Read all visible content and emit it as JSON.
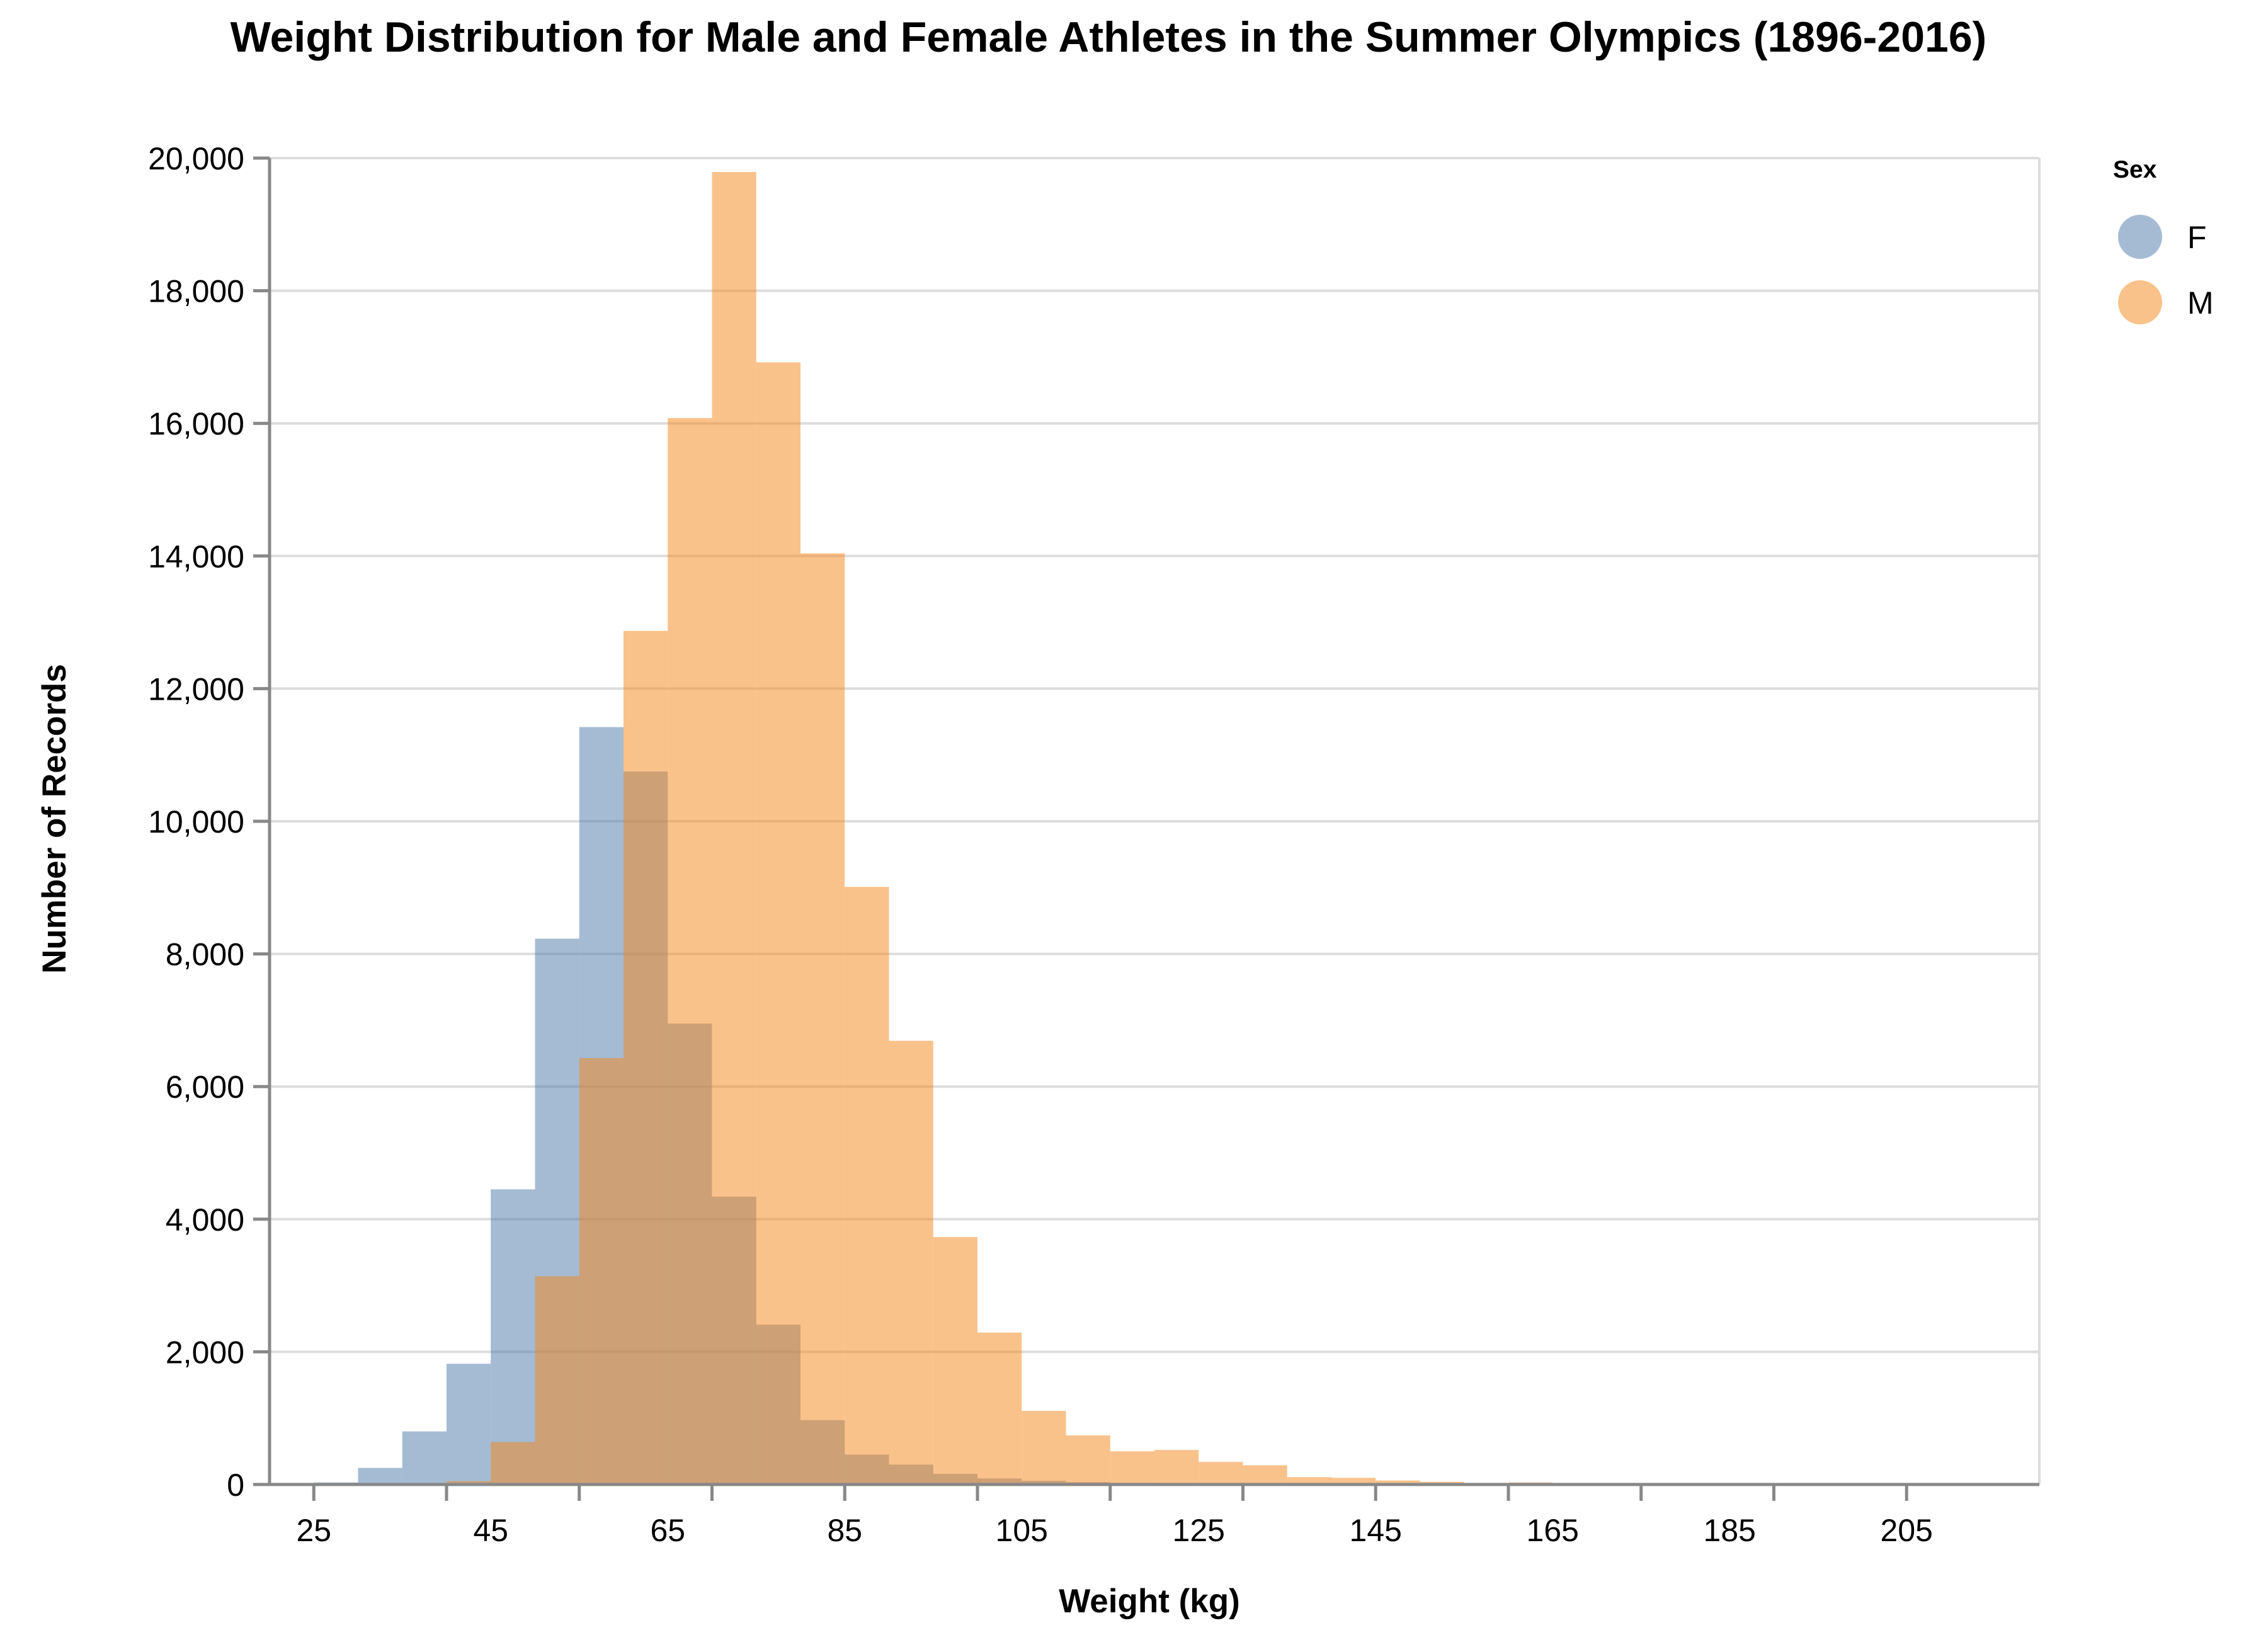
{
  "chart_data": {
    "type": "bar",
    "title": "Weight Distribution for Male and Female Athletes in the Summer Olympics (1896-2016)",
    "xlabel": "Weight (kg)",
    "ylabel": "Number of Records",
    "xlim": [
      20,
      220
    ],
    "ylim": [
      0,
      20000
    ],
    "x_ticks": [
      25,
      45,
      65,
      85,
      105,
      125,
      145,
      165,
      185,
      205
    ],
    "y_ticks": [
      "0",
      "2,000",
      "4,000",
      "6,000",
      "8,000",
      "10,000",
      "12,000",
      "14,000",
      "16,000",
      "18,000",
      "20,000"
    ],
    "bin_edges": [
      25,
      30,
      35,
      40,
      45,
      50,
      55,
      60,
      65,
      70,
      75,
      80,
      85,
      90,
      95,
      100,
      105,
      110,
      115,
      120,
      125,
      130,
      135,
      140,
      145,
      150,
      155,
      160,
      165,
      170,
      175,
      180,
      185,
      190,
      195,
      200,
      205,
      210,
      215
    ],
    "legend_position": "right",
    "legend": {
      "title": "Sex",
      "items": [
        {
          "label": "F",
          "color": "#4c78a8"
        },
        {
          "label": "M",
          "color": "#f58518"
        }
      ]
    },
    "grid": true,
    "series": [
      {
        "name": "F",
        "color": "#4c78a8",
        "opacity": 0.5,
        "values": [
          30,
          250,
          800,
          1820,
          4450,
          8230,
          11420,
          10750,
          6950,
          4340,
          2410,
          970,
          450,
          300,
          160,
          90,
          55,
          35,
          25,
          15,
          10,
          5,
          5,
          3,
          2,
          0,
          0,
          0,
          0,
          0,
          0,
          0,
          0,
          0,
          0,
          0,
          0,
          0
        ]
      },
      {
        "name": "M",
        "color": "#f58518",
        "opacity": 0.5,
        "values": [
          0,
          10,
          20,
          50,
          640,
          3140,
          6430,
          12870,
          16080,
          19790,
          16920,
          14040,
          9010,
          6690,
          3730,
          2290,
          1110,
          740,
          500,
          520,
          340,
          290,
          110,
          100,
          60,
          40,
          20,
          30,
          20,
          10,
          10,
          5,
          5,
          3,
          3,
          2,
          2,
          1
        ]
      }
    ]
  }
}
